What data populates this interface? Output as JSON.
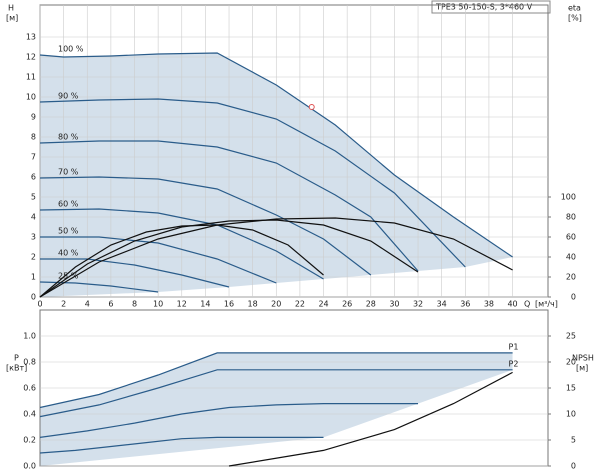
{
  "chart_data": [
    {
      "type": "line",
      "title": "TPE3 50-150-S, 3*460 V",
      "y_label": "H",
      "y_unit": "[м]",
      "y2_label": "eta",
      "y2_unit": "[%]",
      "x_label": "Q",
      "x_unit": "[м³/ч]",
      "xlim": [
        0,
        43
      ],
      "xticks": [
        0,
        2,
        4,
        6,
        8,
        10,
        12,
        14,
        16,
        18,
        20,
        22,
        24,
        26,
        28,
        30,
        32,
        34,
        36,
        38,
        40
      ],
      "ylim": [
        0,
        14.6
      ],
      "yticks": [
        0,
        1,
        2,
        3,
        4,
        5,
        6,
        7,
        8,
        9,
        10,
        11,
        12,
        13
      ],
      "y2lim": [
        0,
        292
      ],
      "y2ticks": [
        0,
        20,
        40,
        60,
        80,
        100
      ],
      "grid": true,
      "duty_point": {
        "x": 23,
        "y": 9.5,
        "color": "#e05050"
      },
      "series": [
        {
          "name": "100 %",
          "color": "#2a5c8a",
          "x": [
            0,
            2,
            6,
            10,
            15,
            20,
            25,
            30,
            35,
            40
          ],
          "values": [
            12.1,
            12.0,
            12.05,
            12.15,
            12.2,
            10.6,
            8.6,
            6.1,
            4.0,
            2.0
          ]
        },
        {
          "name": "90 %",
          "color": "#2a5c8a",
          "x": [
            0,
            5,
            10,
            15,
            20,
            25,
            30,
            36
          ],
          "values": [
            9.75,
            9.85,
            9.9,
            9.7,
            8.9,
            7.3,
            5.2,
            1.5
          ]
        },
        {
          "name": "80 %",
          "color": "#2a5c8a",
          "x": [
            0,
            5,
            10,
            15,
            20,
            25,
            28,
            32
          ],
          "values": [
            7.7,
            7.8,
            7.8,
            7.5,
            6.7,
            5.1,
            4.0,
            1.3
          ]
        },
        {
          "name": "70 %",
          "color": "#2a5c8a",
          "x": [
            0,
            5,
            10,
            15,
            20,
            24,
            28
          ],
          "values": [
            5.95,
            6.0,
            5.9,
            5.4,
            4.1,
            2.9,
            1.1
          ]
        },
        {
          "name": "60 %",
          "color": "#2a5c8a",
          "x": [
            0,
            5,
            10,
            15,
            20,
            24
          ],
          "values": [
            4.35,
            4.4,
            4.2,
            3.6,
            2.3,
            0.9
          ]
        },
        {
          "name": "50 %",
          "color": "#2a5c8a",
          "x": [
            0,
            5,
            10,
            15,
            20
          ],
          "values": [
            3.0,
            3.0,
            2.7,
            1.9,
            0.7
          ]
        },
        {
          "name": "40 %",
          "color": "#2a5c8a",
          "x": [
            0,
            4,
            8,
            12,
            16
          ],
          "values": [
            1.9,
            1.9,
            1.6,
            1.1,
            0.5
          ]
        },
        {
          "name": "25 %",
          "color": "#2a5c8a",
          "x": [
            0,
            3,
            6,
            10
          ],
          "values": [
            0.75,
            0.7,
            0.55,
            0.25
          ]
        },
        {
          "axis": "y2",
          "color": "#111111",
          "x": [
            0,
            5,
            10,
            15,
            20,
            25,
            30,
            35,
            40
          ],
          "values": [
            0,
            35,
            58,
            72,
            78,
            79,
            74,
            58,
            27
          ]
        },
        {
          "axis": "y2",
          "color": "#111111",
          "x": [
            0,
            4,
            8,
            12,
            16,
            20,
            24,
            28,
            32
          ],
          "values": [
            0,
            33,
            56,
            70,
            76,
            77,
            72,
            56,
            25
          ]
        },
        {
          "axis": "y2",
          "color": "#111111",
          "x": [
            0,
            3,
            6,
            9,
            12,
            15,
            18,
            21,
            24
          ],
          "values": [
            0,
            30,
            52,
            65,
            71,
            72,
            67,
            52,
            22
          ]
        }
      ]
    },
    {
      "type": "line",
      "y_label": "P",
      "y_unit": "[кВт]",
      "y2_label": "NPSH",
      "y2_unit": "[м]",
      "xlim": [
        0,
        43
      ],
      "ylim": [
        0,
        1.2
      ],
      "yticks": [
        {
          "value": 0,
          "label": "0.0"
        },
        0.2,
        0.4,
        0.6,
        0.8,
        {
          "value": 1,
          "label": "1.0"
        }
      ],
      "y2lim": [
        0,
        30
      ],
      "y2ticks": [
        0,
        5,
        10,
        15,
        20,
        25
      ],
      "grid": true,
      "series": [
        {
          "name": "P1",
          "color": "#2a5c8a",
          "x": [
            0,
            5,
            10,
            15,
            40
          ],
          "values": [
            0.45,
            0.55,
            0.7,
            0.87,
            0.87
          ]
        },
        {
          "name": "P2",
          "color": "#2a5c8a",
          "x": [
            0,
            5,
            10,
            15,
            40
          ],
          "values": [
            0.38,
            0.47,
            0.6,
            0.74,
            0.74
          ]
        },
        {
          "color": "#2a5c8a",
          "x": [
            0,
            4,
            8,
            12,
            16,
            20,
            24,
            28,
            32
          ],
          "values": [
            0.22,
            0.27,
            0.33,
            0.4,
            0.45,
            0.47,
            0.48,
            0.48,
            0.48
          ]
        },
        {
          "color": "#2a5c8a",
          "x": [
            0,
            3,
            6,
            9,
            12,
            15,
            18,
            21,
            24
          ],
          "values": [
            0.1,
            0.12,
            0.15,
            0.18,
            0.21,
            0.22,
            0.22,
            0.22,
            0.22
          ]
        },
        {
          "axis": "y2",
          "color": "#111111",
          "x": [
            16,
            24,
            30,
            35,
            40
          ],
          "values": [
            0,
            3,
            7,
            12,
            18
          ]
        }
      ]
    }
  ]
}
